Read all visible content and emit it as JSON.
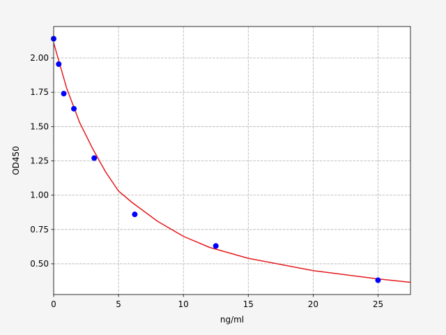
{
  "chart_data": {
    "type": "scatter",
    "xlabel": "ng/ml",
    "ylabel": "OD450",
    "xlim": [
      0,
      27.5
    ],
    "ylim": [
      0.276,
      2.229
    ],
    "xticks": [
      0,
      5,
      10,
      15,
      20,
      25
    ],
    "yticks": [
      {
        "value": 0.5,
        "label": "0.50"
      },
      {
        "value": 0.75,
        "label": "0.75"
      },
      {
        "value": 1.0,
        "label": "1.00"
      },
      {
        "value": 1.25,
        "label": "1.25"
      },
      {
        "value": 1.5,
        "label": "1.50"
      },
      {
        "value": 1.75,
        "label": "1.75"
      },
      {
        "value": 2.0,
        "label": "2.00"
      }
    ],
    "grid": true,
    "series": [
      {
        "type": "scatter",
        "color": "#0000ff",
        "x": [
          0,
          0.39,
          0.78,
          1.56,
          3.125,
          6.25,
          12.5,
          25
        ],
        "values": [
          2.14,
          1.955,
          1.74,
          1.63,
          1.27,
          0.86,
          0.63,
          0.38
        ]
      },
      {
        "type": "line",
        "color": "#e31a1c",
        "x": [
          0,
          1,
          2,
          3,
          4,
          5,
          6,
          8,
          10,
          12,
          15,
          20,
          25,
          27.5
        ],
        "values": [
          2.11,
          1.78,
          1.53,
          1.34,
          1.17,
          1.03,
          0.95,
          0.81,
          0.7,
          0.62,
          0.54,
          0.45,
          0.39,
          0.365
        ]
      }
    ]
  }
}
